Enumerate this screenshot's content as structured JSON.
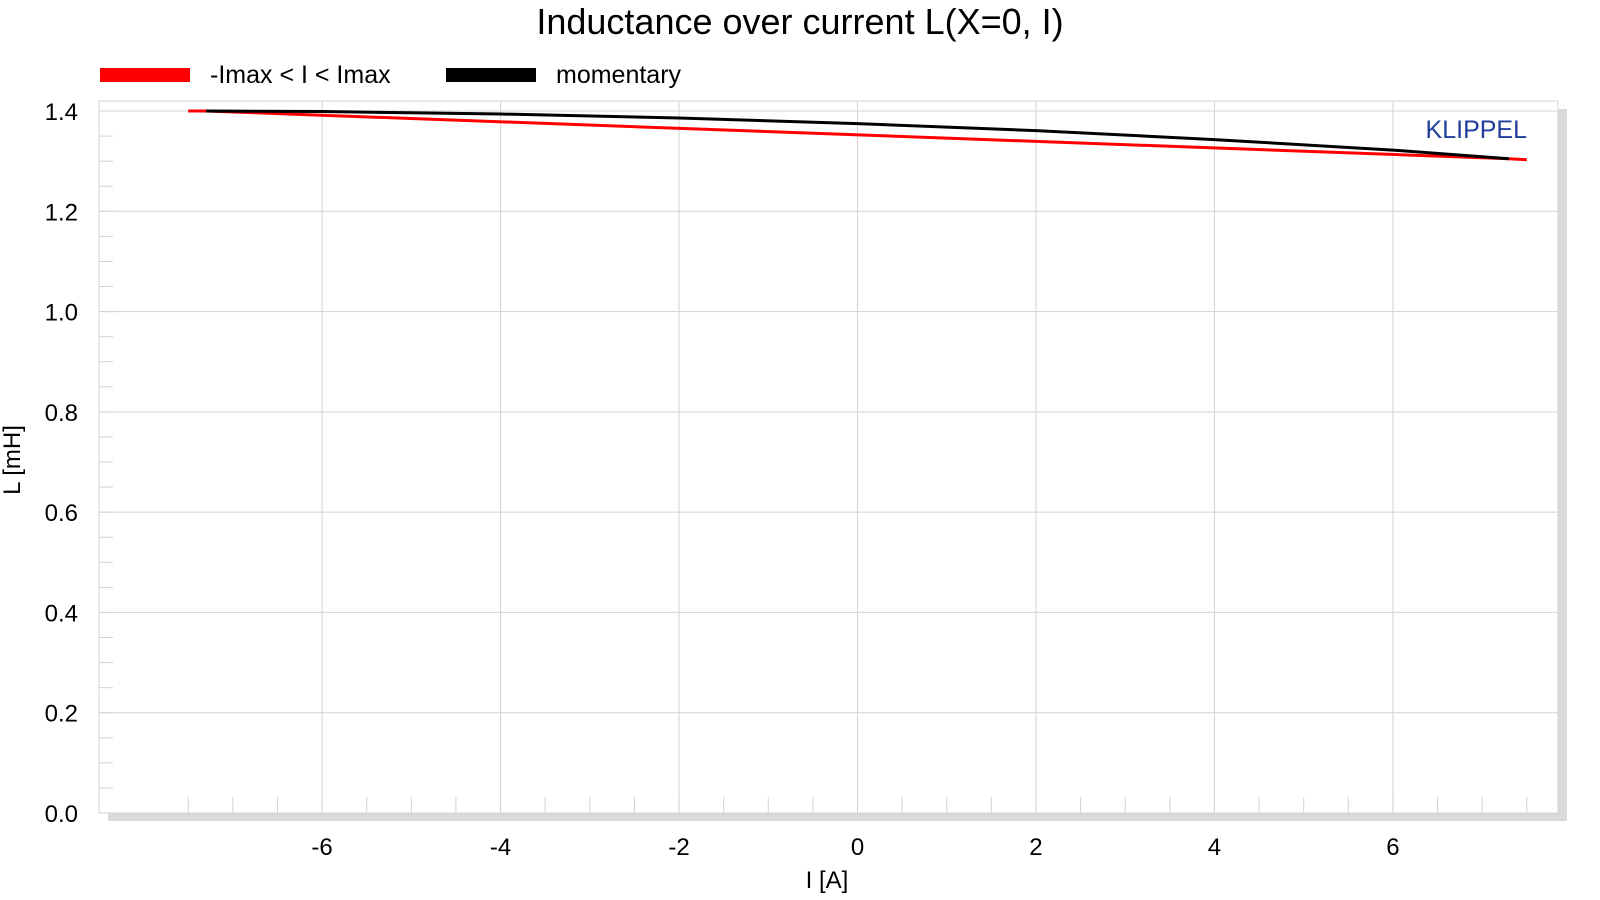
{
  "chart_data": {
    "type": "line",
    "title": "Inductance over current L(X=0, I)",
    "xlabel": "I [A]",
    "ylabel": "L [mH]",
    "xlim": [
      -8.5,
      7.85
    ],
    "ylim": [
      0,
      1.42
    ],
    "xticks": [
      -6,
      -4,
      -2,
      0,
      2,
      4,
      6
    ],
    "yticks": [
      0.0,
      0.2,
      0.4,
      0.6,
      0.8,
      1.0,
      1.2,
      1.4
    ],
    "ytick_labels": [
      "0.0",
      "0.2",
      "0.4",
      "0.6",
      "0.8",
      "1.0",
      "1.2",
      "1.4"
    ],
    "grid": true,
    "legend_position": "top-left",
    "watermark": "KLIPPEL",
    "series": [
      {
        "name": "-Imax < I < Imax",
        "color": "#ff0000",
        "x": [
          -7.5,
          -7.3,
          7.3,
          7.5
        ],
        "y": [
          1.4,
          1.4,
          1.305,
          1.303
        ]
      },
      {
        "name": "momentary",
        "color": "#000000",
        "x": [
          -7.3,
          -6,
          -4,
          -2,
          0,
          2,
          4,
          6,
          7.3
        ],
        "y": [
          1.4,
          1.399,
          1.394,
          1.386,
          1.375,
          1.361,
          1.343,
          1.322,
          1.305
        ]
      }
    ]
  },
  "colors": {
    "grid": "#d3d3d3",
    "frame_shadow": "#d9d9d9",
    "brand": "#1f3d99"
  }
}
